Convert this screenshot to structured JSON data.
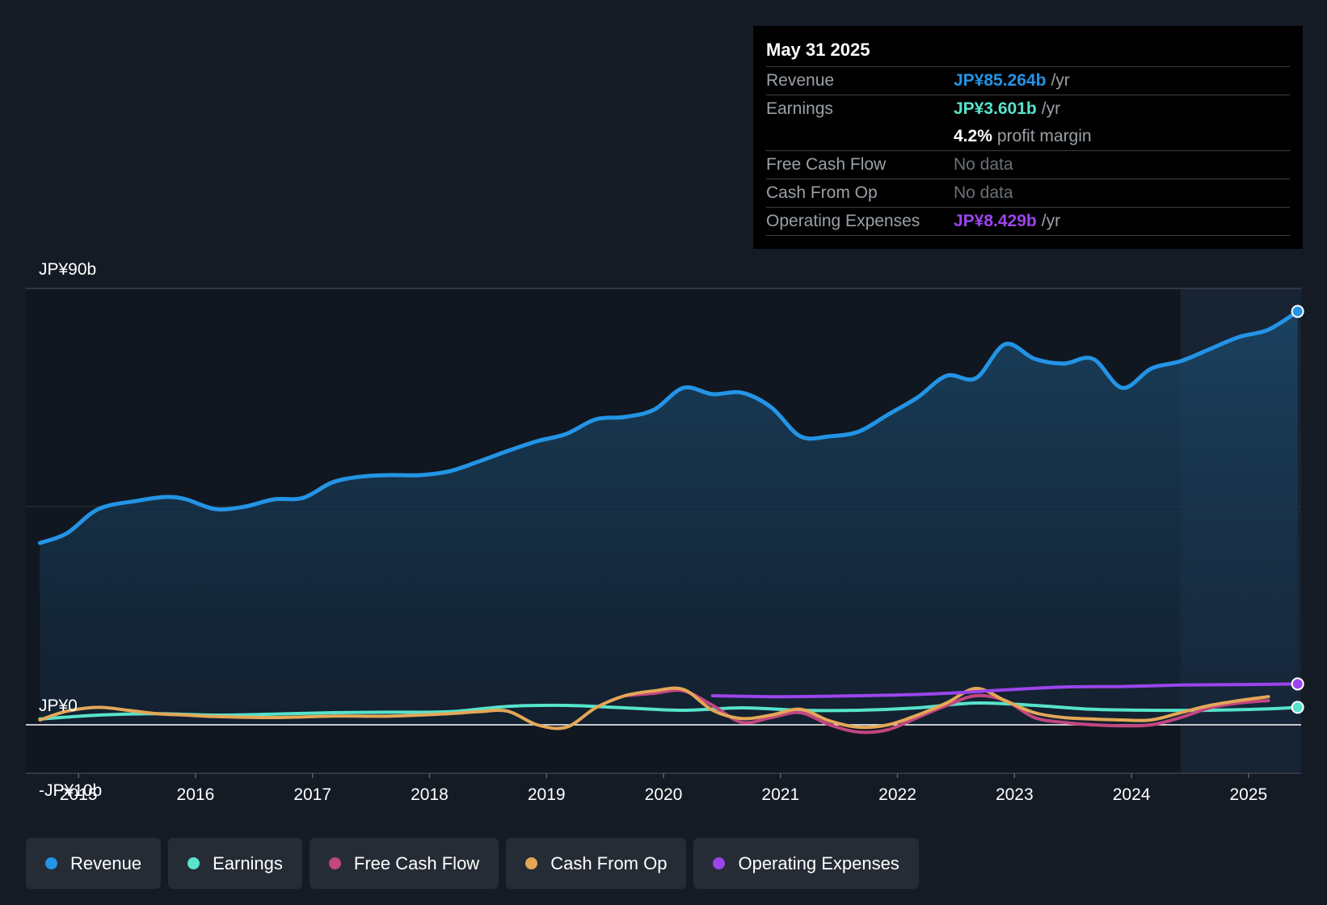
{
  "tooltip": {
    "date": "May 31 2025",
    "revenue_label": "Revenue",
    "revenue_value": "JP¥85.264b",
    "revenue_unit": "/yr",
    "earnings_label": "Earnings",
    "earnings_value": "JP¥3.601b",
    "earnings_unit": "/yr",
    "margin_value": "4.2%",
    "margin_label": "profit margin",
    "fcf_label": "Free Cash Flow",
    "fcf_value": "No data",
    "cfo_label": "Cash From Op",
    "cfo_value": "No data",
    "opex_label": "Operating Expenses",
    "opex_value": "JP¥8.429b",
    "opex_unit": "/yr"
  },
  "colors": {
    "revenue": "#2394e6",
    "earnings": "#57e3cc",
    "fcf": "#c2467f",
    "cfo": "#e4a756",
    "opex": "#9b45ed"
  },
  "legend": [
    {
      "key": "revenue",
      "label": "Revenue"
    },
    {
      "key": "earnings",
      "label": "Earnings"
    },
    {
      "key": "fcf",
      "label": "Free Cash Flow"
    },
    {
      "key": "cfo",
      "label": "Cash From Op"
    },
    {
      "key": "opex",
      "label": "Operating Expenses"
    }
  ],
  "chart_data": {
    "type": "line",
    "title": "",
    "xlabel": "",
    "ylabel": "",
    "xlim": [
      2014.55,
      2025.45
    ],
    "ylim": [
      -10,
      90
    ],
    "y_tick_labels": [
      "JP¥90b",
      "JP¥0",
      "-JP¥10b"
    ],
    "x_ticks": [
      2015,
      2016,
      2017,
      2018,
      2019,
      2020,
      2021,
      2022,
      2023,
      2024,
      2025
    ],
    "x_tick_labels": [
      "2015",
      "2016",
      "2017",
      "2018",
      "2019",
      "2020",
      "2021",
      "2022",
      "2023",
      "2024",
      "2025"
    ],
    "forecast_band_start": 2024.42,
    "series": [
      {
        "name": "Revenue",
        "key": "revenue",
        "x": [
          2014.67,
          2014.9,
          2015.17,
          2015.5,
          2015.75,
          2015.92,
          2016.17,
          2016.42,
          2016.67,
          2016.92,
          2017.17,
          2017.42,
          2017.67,
          2017.92,
          2018.17,
          2018.42,
          2018.67,
          2018.92,
          2019.17,
          2019.42,
          2019.67,
          2019.92,
          2020.17,
          2020.42,
          2020.67,
          2020.92,
          2021.17,
          2021.42,
          2021.67,
          2021.92,
          2022.17,
          2022.42,
          2022.67,
          2022.92,
          2023.17,
          2023.42,
          2023.67,
          2023.92,
          2024.17,
          2024.42,
          2024.67,
          2024.92,
          2025.17,
          2025.42
        ],
        "values": [
          37.5,
          39.5,
          44.5,
          46.2,
          47.0,
          46.5,
          44.5,
          45.0,
          46.5,
          46.8,
          50.0,
          51.2,
          51.5,
          51.5,
          52.3,
          54.3,
          56.5,
          58.5,
          60.0,
          63.0,
          63.5,
          65.0,
          69.5,
          68.2,
          68.5,
          65.5,
          59.5,
          59.5,
          60.5,
          64.0,
          67.5,
          72.0,
          71.5,
          78.5,
          75.5,
          74.5,
          75.5,
          69.5,
          73.5,
          75.0,
          77.5,
          80.0,
          81.5,
          85.264
        ]
      },
      {
        "name": "Earnings",
        "key": "earnings",
        "x": [
          2014.67,
          2015.17,
          2015.67,
          2016.17,
          2016.67,
          2017.17,
          2017.67,
          2018.17,
          2018.67,
          2019.17,
          2019.67,
          2020.17,
          2020.67,
          2021.17,
          2021.67,
          2022.17,
          2022.67,
          2023.17,
          2023.67,
          2024.17,
          2024.67,
          2025.17,
          2025.42
        ],
        "values": [
          1.2,
          2.0,
          2.3,
          2.0,
          2.2,
          2.5,
          2.6,
          2.7,
          3.8,
          4.0,
          3.5,
          3.0,
          3.5,
          3.0,
          3.0,
          3.5,
          4.5,
          4.0,
          3.2,
          3.0,
          3.0,
          3.3,
          3.601
        ]
      },
      {
        "name": "Free Cash Flow",
        "key": "fcf",
        "x": [
          2019.67,
          2019.92,
          2020.17,
          2020.42,
          2020.67,
          2020.92,
          2021.17,
          2021.42,
          2021.67,
          2021.92,
          2022.17,
          2022.42,
          2022.67,
          2022.92,
          2023.17,
          2023.42,
          2023.67,
          2023.92,
          2024.17,
          2024.42,
          2024.67,
          2024.92,
          2025.17
        ],
        "values": [
          6.0,
          6.5,
          7.0,
          4.0,
          0.5,
          1.5,
          2.5,
          0.0,
          -1.5,
          -1.0,
          1.5,
          4.0,
          6.0,
          5.0,
          1.5,
          0.5,
          0.0,
          -0.2,
          0.0,
          1.5,
          3.5,
          4.5,
          5.0
        ]
      },
      {
        "name": "Cash From Op",
        "key": "cfo",
        "x": [
          2014.67,
          2014.9,
          2015.17,
          2015.42,
          2015.67,
          2015.92,
          2016.17,
          2016.67,
          2017.17,
          2017.67,
          2018.17,
          2018.42,
          2018.67,
          2018.92,
          2019.17,
          2019.42,
          2019.67,
          2019.92,
          2020.17,
          2020.42,
          2020.67,
          2020.92,
          2021.17,
          2021.42,
          2021.67,
          2021.92,
          2022.17,
          2022.42,
          2022.67,
          2022.92,
          2023.17,
          2023.42,
          2023.67,
          2023.92,
          2024.17,
          2024.42,
          2024.67,
          2024.92,
          2025.17
        ],
        "values": [
          1.0,
          2.8,
          3.6,
          3.0,
          2.3,
          2.0,
          1.7,
          1.5,
          1.8,
          1.8,
          2.3,
          2.7,
          2.8,
          0.0,
          -0.5,
          3.5,
          6.0,
          7.0,
          7.3,
          3.0,
          1.3,
          2.0,
          3.2,
          0.8,
          -0.5,
          0.0,
          2.0,
          4.5,
          7.5,
          5.0,
          2.5,
          1.5,
          1.2,
          1.0,
          1.0,
          2.5,
          4.0,
          5.0,
          5.8
        ]
      },
      {
        "name": "Operating Expenses",
        "key": "opex",
        "x": [
          2020.42,
          2020.92,
          2021.42,
          2021.92,
          2022.42,
          2022.92,
          2023.42,
          2023.92,
          2024.42,
          2024.92,
          2025.42
        ],
        "values": [
          6.0,
          5.8,
          5.9,
          6.1,
          6.5,
          7.2,
          7.8,
          7.9,
          8.2,
          8.3,
          8.429
        ]
      }
    ]
  }
}
